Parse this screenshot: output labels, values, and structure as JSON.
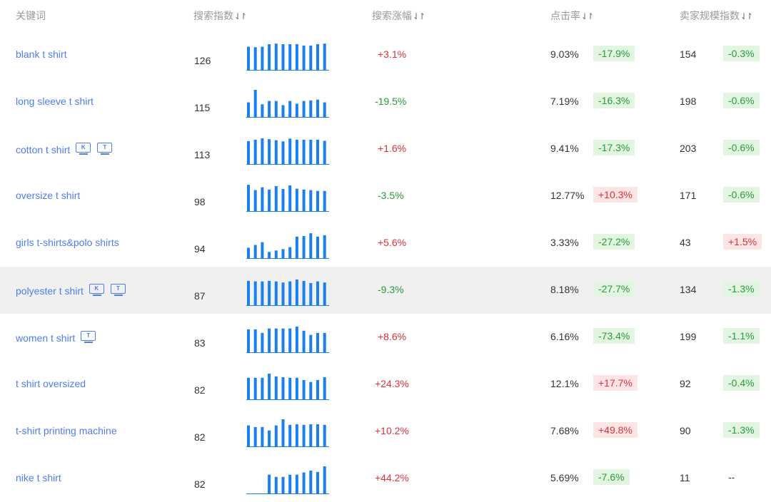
{
  "headers": {
    "keyword": "关键词",
    "search_index": "搜索指数",
    "search_growth": "搜索涨幅",
    "ctr": "点击率",
    "seller_scale": "卖家规模指数"
  },
  "sort_icon": "⇃↾",
  "rows": [
    {
      "keyword": "blank t shirt",
      "icons": [],
      "index": "126",
      "trend": [
        0.86,
        0.84,
        0.86,
        0.95,
        0.97,
        0.95,
        0.95,
        0.95,
        0.9,
        0.9,
        0.95,
        0.97
      ],
      "growth": "+3.1%",
      "growth_dir": "pos",
      "ctr": "9.03%",
      "ctr_change": "-17.9%",
      "ctr_dir": "neg",
      "seller": "154",
      "seller_change": "-0.3%",
      "seller_dir": "neg"
    },
    {
      "keyword": "long sleeve t shirt",
      "icons": [],
      "index": "115",
      "trend": [
        0.55,
        1.0,
        0.48,
        0.6,
        0.6,
        0.45,
        0.6,
        0.5,
        0.6,
        0.62,
        0.65,
        0.55
      ],
      "growth": "-19.5%",
      "growth_dir": "neg",
      "ctr": "7.19%",
      "ctr_change": "-16.3%",
      "ctr_dir": "neg",
      "seller": "198",
      "seller_change": "-0.6%",
      "seller_dir": "neg"
    },
    {
      "keyword": "cotton t shirt",
      "icons": [
        "K",
        "T"
      ],
      "index": "113",
      "trend": [
        0.85,
        0.9,
        0.95,
        0.92,
        0.88,
        0.84,
        0.94,
        0.9,
        0.9,
        0.9,
        0.9,
        0.86
      ],
      "growth": "+1.6%",
      "growth_dir": "pos",
      "ctr": "9.41%",
      "ctr_change": "-17.3%",
      "ctr_dir": "neg",
      "seller": "203",
      "seller_change": "-0.6%",
      "seller_dir": "neg"
    },
    {
      "keyword": "oversize t shirt",
      "icons": [],
      "index": "98",
      "trend": [
        0.97,
        0.78,
        0.88,
        0.8,
        0.92,
        0.82,
        0.95,
        0.83,
        0.8,
        0.78,
        0.75,
        0.75
      ],
      "growth": "-3.5%",
      "growth_dir": "neg",
      "ctr": "12.77%",
      "ctr_change": "+10.3%",
      "ctr_dir": "pos",
      "seller": "171",
      "seller_change": "-0.6%",
      "seller_dir": "neg"
    },
    {
      "keyword": "girls t-shirts&polo shirts",
      "icons": [],
      "index": "94",
      "trend": [
        0.4,
        0.5,
        0.6,
        0.25,
        0.3,
        0.35,
        0.42,
        0.8,
        0.82,
        0.92,
        0.8,
        0.85
      ],
      "growth": "+5.6%",
      "growth_dir": "pos",
      "ctr": "3.33%",
      "ctr_change": "-27.2%",
      "ctr_dir": "neg",
      "seller": "43",
      "seller_change": "+1.5%",
      "seller_dir": "pos"
    },
    {
      "keyword": "polyester t shirt",
      "icons": [
        "K",
        "T"
      ],
      "index": "87",
      "trend": [
        0.9,
        0.88,
        0.88,
        0.9,
        0.88,
        0.84,
        0.88,
        0.95,
        0.9,
        0.82,
        0.88,
        0.84
      ],
      "growth": "-9.3%",
      "growth_dir": "neg",
      "ctr": "8.18%",
      "ctr_change": "-27.7%",
      "ctr_dir": "neg",
      "seller": "134",
      "seller_change": "-1.3%",
      "seller_dir": "neg"
    },
    {
      "keyword": "women t shirt",
      "icons": [
        "T"
      ],
      "index": "83",
      "trend": [
        0.85,
        0.85,
        0.72,
        0.88,
        0.88,
        0.88,
        0.88,
        0.95,
        0.8,
        0.65,
        0.72,
        0.72
      ],
      "growth": "+8.6%",
      "growth_dir": "pos",
      "ctr": "6.16%",
      "ctr_change": "-73.4%",
      "ctr_dir": "neg",
      "seller": "199",
      "seller_change": "-1.1%",
      "seller_dir": "neg"
    },
    {
      "keyword": "t shirt oversized",
      "icons": [],
      "index": "82",
      "trend": [
        0.8,
        0.8,
        0.8,
        0.95,
        0.85,
        0.82,
        0.8,
        0.8,
        0.72,
        0.65,
        0.72,
        0.82
      ],
      "growth": "+24.3%",
      "growth_dir": "pos",
      "ctr": "12.1%",
      "ctr_change": "+17.7%",
      "ctr_dir": "pos",
      "seller": "92",
      "seller_change": "-0.4%",
      "seller_dir": "neg"
    },
    {
      "keyword": "t-shirt printing machine",
      "icons": [],
      "index": "82",
      "trend": [
        0.78,
        0.72,
        0.72,
        0.6,
        0.78,
        1.0,
        0.8,
        0.82,
        0.8,
        0.82,
        0.82,
        0.8
      ],
      "growth": "+10.2%",
      "growth_dir": "pos",
      "ctr": "7.68%",
      "ctr_change": "+49.8%",
      "ctr_dir": "pos",
      "seller": "90",
      "seller_change": "-1.3%",
      "seller_dir": "neg"
    },
    {
      "keyword": "nike t shirt",
      "icons": [],
      "index": "82",
      "trend": [
        0,
        0,
        0,
        0.7,
        0.62,
        0.62,
        0.7,
        0.7,
        0.78,
        0.85,
        0.8,
        1.0
      ],
      "growth": "+44.2%",
      "growth_dir": "pos",
      "ctr": "5.69%",
      "ctr_change": "-7.6%",
      "ctr_dir": "neg",
      "seller": "11",
      "seller_change": "--",
      "seller_dir": "none"
    }
  ],
  "highlighted_row": 5,
  "colors": {
    "link": "#4f7df0",
    "bar": "#1a7ff0",
    "positive": "#e0303a",
    "negative": "#2a9a3a",
    "positive_bg": "#fde5e5",
    "negative_bg": "#e2f5e0",
    "row_highlight": "#f0f0f0"
  },
  "icon_names": {
    "K": "k-device-icon",
    "T": "t-device-icon"
  }
}
